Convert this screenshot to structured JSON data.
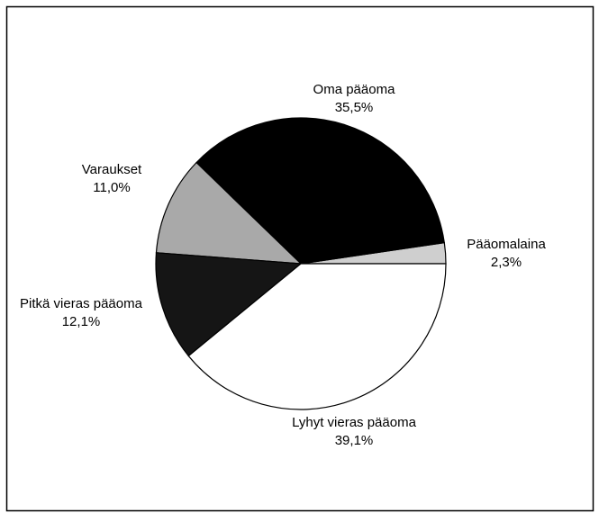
{
  "chart_data": {
    "type": "pie",
    "labels": [
      "Pääomalaina",
      "Oma pääoma",
      "Varaukset",
      "Pitkä vieras pääoma",
      "Lyhyt vieras pääoma"
    ],
    "values": [
      2.3,
      35.5,
      11.0,
      12.1,
      39.1
    ],
    "value_labels": [
      "2,3%",
      "35,5%",
      "11,0%",
      "12,1%",
      "39,1%"
    ],
    "colors": [
      "#cfcfcf",
      "#000000",
      "#a9a9a9",
      "#151515",
      "#ffffff"
    ]
  }
}
